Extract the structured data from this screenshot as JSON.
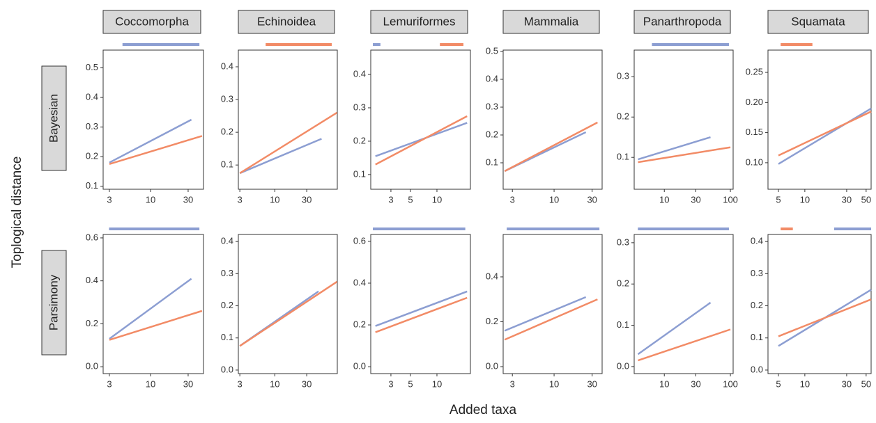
{
  "x_label": "Added taxa",
  "y_label": "Toplogical distance",
  "columns": [
    "Coccomorpha",
    "Echinoidea",
    "Lemuriformes",
    "Mammalia",
    "Panarthropoda",
    "Squamata"
  ],
  "rows": [
    "Bayesian",
    "Parsimony"
  ],
  "chart_data": [
    {
      "type": "line",
      "xscale": "log",
      "xlim": [
        2.5,
        47
      ],
      "ylim": [
        0.09,
        0.56
      ],
      "xticks": [
        3,
        10,
        30
      ],
      "yticks": [
        0.1,
        0.2,
        0.3,
        0.4,
        0.5
      ],
      "series": [
        {
          "color": "#8c9ed2",
          "x": [
            3,
            33
          ],
          "values": [
            0.18,
            0.325
          ]
        },
        {
          "color": "#f28b66",
          "x": [
            3,
            45
          ],
          "values": [
            0.175,
            0.27
          ]
        }
      ],
      "significance": [
        {
          "color": "#8c9ed2",
          "x": [
            4.4,
            41.7
          ]
        }
      ]
    },
    {
      "type": "line",
      "xscale": "log",
      "xlim": [
        2.85,
        86
      ],
      "ylim": [
        0.026,
        0.451
      ],
      "xticks": [
        3,
        10,
        30
      ],
      "yticks": [
        0.1,
        0.2,
        0.3,
        0.4
      ],
      "series": [
        {
          "color": "#8c9ed2",
          "x": [
            3,
            50
          ],
          "values": [
            0.075,
            0.18
          ]
        },
        {
          "color": "#f28b66",
          "x": [
            3,
            85
          ],
          "values": [
            0.075,
            0.26
          ]
        }
      ],
      "significance": [
        {
          "color": "#f28b66",
          "x": [
            7.3,
            71
          ]
        }
      ]
    },
    {
      "type": "line",
      "xscale": "log",
      "xlim": [
        1.77,
        24
      ],
      "ylim": [
        0.056,
        0.473
      ],
      "xticks": [
        3,
        5,
        10
      ],
      "yticks": [
        0.1,
        0.2,
        0.3,
        0.4
      ],
      "series": [
        {
          "color": "#8c9ed2",
          "x": [
            2,
            22
          ],
          "values": [
            0.155,
            0.255
          ]
        },
        {
          "color": "#f28b66",
          "x": [
            2,
            22
          ],
          "values": [
            0.13,
            0.275
          ]
        }
      ],
      "significance": [
        {
          "color": "#8c9ed2",
          "x": [
            1.87,
            2.28
          ]
        },
        {
          "color": "#f28b66",
          "x": [
            10.8,
            20
          ]
        }
      ]
    },
    {
      "type": "line",
      "xscale": "log",
      "xlim": [
        2.3,
        40
      ],
      "ylim": [
        0.005,
        0.505
      ],
      "xticks": [
        3,
        10,
        30
      ],
      "yticks": [
        0.1,
        0.2,
        0.3,
        0.4,
        0.5
      ],
      "series": [
        {
          "color": "#8c9ed2",
          "x": [
            2.4,
            25
          ],
          "values": [
            0.07,
            0.21
          ]
        },
        {
          "color": "#f28b66",
          "x": [
            2.4,
            35
          ],
          "values": [
            0.07,
            0.245
          ]
        }
      ],
      "significance": []
    },
    {
      "type": "line",
      "xscale": "log",
      "xlim": [
        3.5,
        110
      ],
      "ylim": [
        0.021,
        0.366
      ],
      "xticks": [
        10,
        30,
        100
      ],
      "yticks": [
        0.1,
        0.2,
        0.3
      ],
      "series": [
        {
          "color": "#8c9ed2",
          "x": [
            4,
            50
          ],
          "values": [
            0.095,
            0.15
          ]
        },
        {
          "color": "#f28b66",
          "x": [
            4,
            100
          ],
          "values": [
            0.088,
            0.125
          ]
        }
      ],
      "significance": [
        {
          "color": "#8c9ed2",
          "x": [
            6.5,
            95
          ]
        }
      ]
    },
    {
      "type": "line",
      "xscale": "log",
      "xlim": [
        3.8,
        57
      ],
      "ylim": [
        0.056,
        0.287
      ],
      "xticks": [
        5,
        10,
        30,
        50
      ],
      "yticks": [
        {
          "value": 0.1,
          "label": "0.10"
        },
        0.15,
        {
          "value": 0.2,
          "label": "0.20"
        },
        0.25
      ],
      "series": [
        {
          "color": "#8c9ed2",
          "x": [
            5,
            57
          ],
          "values": [
            0.098,
            0.19
          ]
        },
        {
          "color": "#f28b66",
          "x": [
            5,
            57
          ],
          "values": [
            0.112,
            0.185
          ]
        }
      ],
      "significance": [
        {
          "color": "#f28b66",
          "x": [
            5.3,
            12.2
          ]
        }
      ]
    },
    {
      "type": "line",
      "xscale": "log",
      "xlim": [
        2.5,
        47
      ],
      "ylim": [
        -0.032,
        0.616
      ],
      "xticks": [
        3,
        10,
        30
      ],
      "yticks": [
        {
          "value": 0,
          "label": "0.0"
        },
        0.2,
        0.4,
        0.6
      ],
      "series": [
        {
          "color": "#8c9ed2",
          "x": [
            3,
            33
          ],
          "values": [
            0.13,
            0.41
          ]
        },
        {
          "color": "#f28b66",
          "x": [
            3,
            45
          ],
          "values": [
            0.125,
            0.26
          ]
        }
      ],
      "significance": [
        {
          "color": "#8c9ed2",
          "x": [
            2.97,
            41.7
          ]
        }
      ]
    },
    {
      "type": "line",
      "xscale": "log",
      "xlim": [
        2.85,
        86
      ],
      "ylim": [
        -0.011,
        0.422
      ],
      "xticks": [
        3,
        10,
        30
      ],
      "yticks": [
        {
          "value": 0,
          "label": "0.0"
        },
        0.1,
        0.2,
        0.3,
        0.4
      ],
      "series": [
        {
          "color": "#8c9ed2",
          "x": [
            3,
            45
          ],
          "values": [
            0.075,
            0.245
          ]
        },
        {
          "color": "#f28b66",
          "x": [
            3,
            85
          ],
          "values": [
            0.075,
            0.275
          ]
        }
      ],
      "significance": []
    },
    {
      "type": "line",
      "xscale": "log",
      "xlim": [
        1.77,
        24
      ],
      "ylim": [
        -0.033,
        0.633
      ],
      "xticks": [
        3,
        5,
        10
      ],
      "yticks": [
        {
          "value": 0,
          "label": "0.0"
        },
        0.2,
        0.4,
        0.6
      ],
      "series": [
        {
          "color": "#8c9ed2",
          "x": [
            2,
            22
          ],
          "values": [
            0.195,
            0.36
          ]
        },
        {
          "color": "#f28b66",
          "x": [
            2,
            22
          ],
          "values": [
            0.165,
            0.33
          ]
        }
      ],
      "significance": [
        {
          "color": "#8c9ed2",
          "x": [
            1.87,
            21
          ]
        }
      ]
    },
    {
      "type": "line",
      "xscale": "log",
      "xlim": [
        2.3,
        40
      ],
      "ylim": [
        -0.031,
        0.589
      ],
      "xticks": [
        3,
        10,
        30
      ],
      "yticks": [
        {
          "value": 0,
          "label": "0.0"
        },
        0.2,
        0.4
      ],
      "series": [
        {
          "color": "#8c9ed2",
          "x": [
            2.4,
            25
          ],
          "values": [
            0.16,
            0.31
          ]
        },
        {
          "color": "#f28b66",
          "x": [
            2.4,
            35
          ],
          "values": [
            0.12,
            0.3
          ]
        }
      ],
      "significance": [
        {
          "color": "#8c9ed2",
          "x": [
            2.55,
            37
          ]
        }
      ]
    },
    {
      "type": "line",
      "xscale": "log",
      "xlim": [
        3.5,
        110
      ],
      "ylim": [
        -0.017,
        0.32
      ],
      "xticks": [
        10,
        30,
        100
      ],
      "yticks": [
        {
          "value": 0,
          "label": "0.0"
        },
        0.1,
        0.2,
        0.3
      ],
      "series": [
        {
          "color": "#8c9ed2",
          "x": [
            4,
            50
          ],
          "values": [
            0.03,
            0.155
          ]
        },
        {
          "color": "#f28b66",
          "x": [
            4,
            100
          ],
          "values": [
            0.015,
            0.09
          ]
        }
      ],
      "significance": [
        {
          "color": "#8c9ed2",
          "x": [
            3.98,
            95
          ]
        }
      ]
    },
    {
      "type": "line",
      "xscale": "log",
      "xlim": [
        3.8,
        57
      ],
      "ylim": [
        -0.011,
        0.422
      ],
      "xticks": [
        5,
        10,
        30,
        50
      ],
      "yticks": [
        {
          "value": 0,
          "label": "0.0"
        },
        0.1,
        0.2,
        0.3,
        0.4
      ],
      "series": [
        {
          "color": "#8c9ed2",
          "x": [
            5,
            57
          ],
          "values": [
            0.075,
            0.25
          ]
        },
        {
          "color": "#f28b66",
          "x": [
            5,
            57
          ],
          "values": [
            0.105,
            0.22
          ]
        }
      ],
      "significance": [
        {
          "color": "#f28b66",
          "x": [
            5.3,
            7.3
          ]
        },
        {
          "color": "#8c9ed2",
          "x": [
            21.6,
            57
          ]
        }
      ]
    }
  ]
}
